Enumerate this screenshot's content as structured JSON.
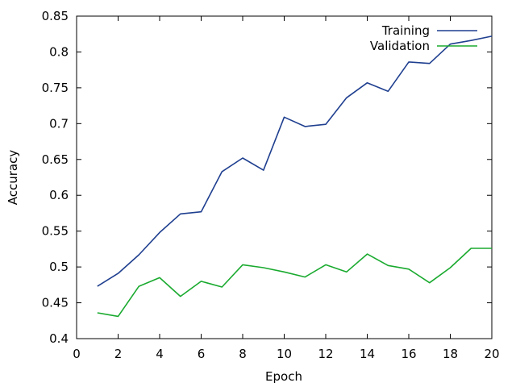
{
  "chart_data": {
    "type": "line",
    "title": "",
    "xlabel": "Epoch",
    "ylabel": "Accuracy",
    "xlim": [
      0,
      20
    ],
    "ylim": [
      0.4,
      0.85
    ],
    "x_ticks": [
      "0",
      "2",
      "4",
      "6",
      "8",
      "10",
      "12",
      "14",
      "16",
      "18",
      "20"
    ],
    "y_ticks": [
      "0.4",
      "0.45",
      "0.5",
      "0.55",
      "0.6",
      "0.65",
      "0.7",
      "0.75",
      "0.8",
      "0.85"
    ],
    "grid": false,
    "legend_position": "top-right",
    "x": [
      1,
      2,
      3,
      4,
      5,
      6,
      7,
      8,
      9,
      10,
      11,
      12,
      13,
      14,
      15,
      16,
      17,
      18,
      19,
      20
    ],
    "series": [
      {
        "name": "Training",
        "color": "#1f3f8f",
        "values": [
          0.473,
          0.491,
          0.517,
          0.548,
          0.574,
          0.577,
          0.633,
          0.652,
          0.635,
          0.709,
          0.696,
          0.699,
          0.736,
          0.757,
          0.745,
          0.786,
          0.784,
          0.811,
          0.816,
          0.822
        ]
      },
      {
        "name": "Validation",
        "color": "#1aaa2f",
        "values": [
          0.436,
          0.431,
          0.473,
          0.485,
          0.459,
          0.48,
          0.472,
          0.503,
          0.499,
          0.493,
          0.486,
          0.503,
          0.493,
          0.518,
          0.502,
          0.497,
          0.478,
          0.499,
          0.526,
          0.526
        ]
      }
    ]
  }
}
